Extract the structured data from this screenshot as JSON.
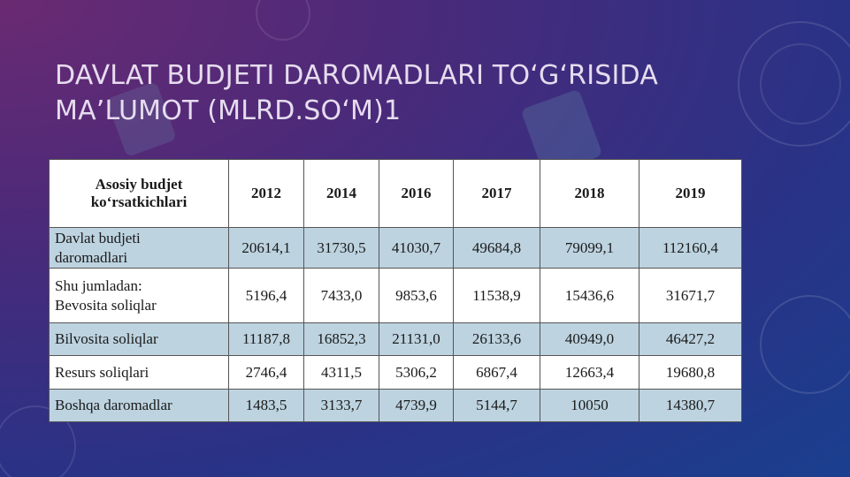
{
  "slide": {
    "title": "DAVLAT BUDJETI DAROMADLARI TO‘G‘RISIDA MA’LUMOT (MLRD.SO‘M)1",
    "table": {
      "header_label": [
        "Asosiy budjet",
        "ko‘rsatkichlari"
      ],
      "years": [
        "2012",
        "2014",
        "2016",
        "2017",
        "2018",
        "2019"
      ],
      "rows": [
        {
          "label": [
            "Davlat budjeti",
            "daromadlari"
          ],
          "cells": [
            "20614,1",
            "31730,5",
            "41030,7",
            "49684,8",
            "79099,1",
            "112160,4"
          ]
        },
        {
          "label": [
            "Shu jumladan:",
            "Bevosita soliqlar"
          ],
          "cells": [
            "5196,4",
            "7433,0",
            "9853,6",
            "11538,9",
            "15436,6",
            "31671,7"
          ]
        },
        {
          "label": [
            "Bilvosita soliqlar"
          ],
          "cells": [
            "11187,8",
            "16852,3",
            "21131,0",
            "26133,6",
            "40949,0",
            "46427,2"
          ]
        },
        {
          "label": [
            "Resurs soliqlari"
          ],
          "cells": [
            "2746,4",
            "4311,5",
            "5306,2",
            "6867,4",
            "12663,4",
            "19680,8"
          ]
        },
        {
          "label": [
            "Boshqa daromadlar"
          ],
          "cells": [
            "1483,5",
            "3133,7",
            "4739,9",
            "5144,7",
            "10050",
            "14380,7"
          ]
        }
      ]
    }
  }
}
